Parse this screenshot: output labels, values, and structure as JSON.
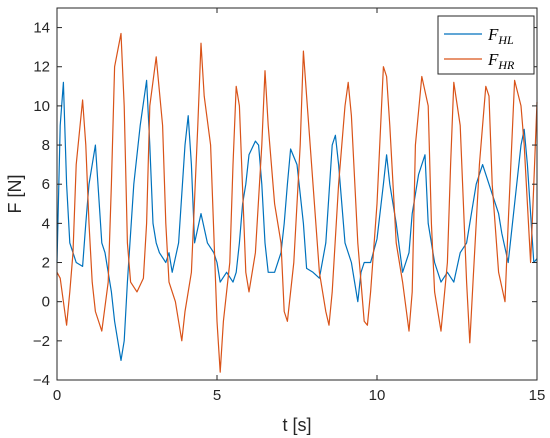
{
  "chart_data": {
    "type": "line",
    "xlabel": "t [s]",
    "ylabel": "F [N]",
    "xlim": [
      0,
      15
    ],
    "ylim": [
      -4,
      15
    ],
    "xticks": [
      0,
      5,
      10,
      15
    ],
    "yticks": [
      -4,
      -2,
      0,
      2,
      4,
      6,
      8,
      10,
      12,
      14
    ],
    "grid": false,
    "legend_position": "top-right",
    "series": [
      {
        "name": "F_HL",
        "label_main": "F",
        "label_sub": "HL",
        "color": "#0072BD",
        "x": [
          0,
          0.1,
          0.2,
          0.3,
          0.4,
          0.6,
          0.8,
          0.9,
          1.0,
          1.2,
          1.4,
          1.5,
          1.6,
          1.7,
          1.8,
          2.0,
          2.1,
          2.2,
          2.4,
          2.6,
          2.8,
          2.9,
          3.0,
          3.1,
          3.2,
          3.4,
          3.5,
          3.6,
          3.8,
          4.0,
          4.1,
          4.2,
          4.3,
          4.5,
          4.7,
          4.9,
          5.0,
          5.1,
          5.3,
          5.5,
          5.6,
          5.7,
          5.8,
          5.9,
          6.0,
          6.2,
          6.3,
          6.4,
          6.5,
          6.6,
          6.8,
          7.0,
          7.1,
          7.2,
          7.3,
          7.5,
          7.7,
          7.8,
          8.0,
          8.2,
          8.4,
          8.6,
          8.7,
          8.8,
          9.0,
          9.2,
          9.3,
          9.4,
          9.5,
          9.6,
          9.8,
          10.0,
          10.2,
          10.3,
          10.4,
          10.6,
          10.8,
          11.0,
          11.1,
          11.3,
          11.5,
          11.6,
          11.8,
          12.0,
          12.2,
          12.4,
          12.6,
          12.8,
          12.9,
          13.1,
          13.3,
          13.5,
          13.7,
          13.8,
          13.9,
          14.1,
          14.3,
          14.5,
          14.6,
          14.7,
          14.9,
          15.0
        ],
        "y": [
          2,
          9,
          11.2,
          6,
          3,
          2,
          1.8,
          4,
          6,
          8,
          3,
          2.5,
          1.5,
          0.5,
          -1,
          -3,
          -2,
          1,
          6,
          9,
          11.3,
          8,
          4,
          3,
          2.5,
          2,
          2.5,
          1.5,
          3,
          8,
          9.5,
          7,
          3,
          4.5,
          3,
          2.5,
          2,
          1,
          1.5,
          1,
          1.5,
          3,
          5,
          6,
          7.5,
          8.2,
          8,
          6,
          3,
          1.5,
          1.5,
          2.5,
          4,
          6,
          7.8,
          7,
          4,
          1.7,
          1.5,
          1.2,
          3,
          8,
          8.5,
          7,
          3,
          2,
          1,
          0,
          1.5,
          2,
          2,
          3.2,
          6,
          7.5,
          6,
          4,
          1.5,
          2.5,
          4.5,
          6.5,
          7.5,
          4,
          2,
          1,
          1.5,
          1,
          2.5,
          3,
          4,
          6,
          7,
          6,
          5,
          4.5,
          3.5,
          2,
          5,
          8,
          8.8,
          7,
          2,
          2.2
        ]
      },
      {
        "name": "F_HR",
        "label_main": "F",
        "label_sub": "HR",
        "color": "#D95319",
        "x": [
          0,
          0.1,
          0.2,
          0.3,
          0.4,
          0.5,
          0.6,
          0.8,
          0.9,
          1.0,
          1.1,
          1.2,
          1.4,
          1.6,
          1.7,
          1.8,
          2.0,
          2.1,
          2.2,
          2.3,
          2.5,
          2.7,
          2.8,
          2.9,
          3.1,
          3.3,
          3.4,
          3.5,
          3.7,
          3.8,
          3.9,
          4.0,
          4.2,
          4.4,
          4.5,
          4.6,
          4.8,
          5.0,
          5.1,
          5.2,
          5.4,
          5.5,
          5.6,
          5.7,
          5.9,
          6.0,
          6.2,
          6.4,
          6.5,
          6.6,
          6.8,
          7.0,
          7.1,
          7.2,
          7.4,
          7.6,
          7.7,
          7.8,
          8.0,
          8.2,
          8.4,
          8.5,
          8.6,
          8.8,
          9.0,
          9.1,
          9.2,
          9.4,
          9.6,
          9.7,
          9.8,
          10.0,
          10.2,
          10.3,
          10.4,
          10.6,
          10.8,
          11.0,
          11.1,
          11.2,
          11.4,
          11.6,
          11.7,
          11.8,
          12.0,
          12.2,
          12.3,
          12.4,
          12.6,
          12.8,
          12.9,
          13.0,
          13.2,
          13.4,
          13.5,
          13.6,
          13.8,
          14.0,
          14.1,
          14.3,
          14.5,
          14.6,
          14.8,
          14.9,
          15.0
        ],
        "y": [
          1.5,
          1.2,
          0,
          -1.2,
          0.5,
          2.5,
          7,
          10.3,
          8,
          4,
          1,
          -0.5,
          -1.5,
          1,
          6,
          12,
          13.7,
          10,
          3,
          1,
          0.5,
          1.2,
          4,
          10,
          12.5,
          9,
          4,
          1,
          0,
          -1,
          -2,
          -0.5,
          1.5,
          9,
          13.2,
          10.5,
          8,
          -1,
          -3.6,
          -1,
          2,
          7,
          11,
          10,
          1.5,
          0.5,
          2.5,
          8,
          11.8,
          9,
          5,
          3,
          -0.5,
          -1,
          2,
          8,
          12.8,
          10.5,
          6,
          1.5,
          -0.5,
          -1.2,
          0.5,
          6,
          10,
          11.2,
          9.5,
          3,
          -1,
          -1.2,
          0.5,
          5,
          12,
          11.5,
          9,
          3,
          1,
          -1.5,
          0.5,
          8,
          11.5,
          10,
          4,
          0.5,
          -1.5,
          2,
          7,
          11.2,
          9,
          1,
          -2.1,
          1,
          7,
          11,
          10.5,
          6,
          1.5,
          0,
          4,
          11.3,
          10,
          8,
          2,
          6,
          10.2
        ]
      }
    ]
  }
}
